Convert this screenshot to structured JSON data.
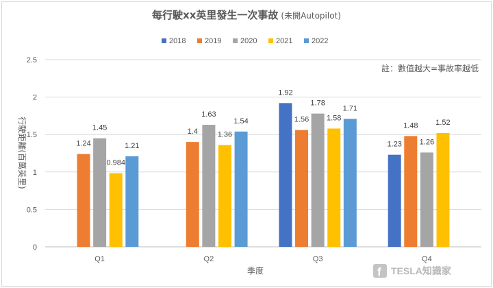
{
  "chart_data": {
    "type": "bar",
    "title": "每行駛xx英里發生一次事故",
    "subtitle": "(未開Autopilot)",
    "xlabel": "季度",
    "ylabel": "行駛距離(百萬英里)",
    "ylim": [
      0,
      2.5
    ],
    "yticks": [
      "0",
      "0.5",
      "1",
      "1.5",
      "2",
      "2.5"
    ],
    "categories": [
      "Q1",
      "Q2",
      "Q3",
      "Q4"
    ],
    "series": [
      {
        "name": "2018",
        "color": "#4472C4",
        "values": [
          null,
          null,
          1.92,
          1.23
        ],
        "labels": [
          null,
          null,
          "1.92",
          "1.23"
        ]
      },
      {
        "name": "2019",
        "color": "#ED7D31",
        "values": [
          1.24,
          1.4,
          1.56,
          1.48
        ],
        "labels": [
          "1.24",
          "1.4",
          "1.56",
          "1.48"
        ]
      },
      {
        "name": "2020",
        "color": "#A5A5A5",
        "values": [
          1.45,
          1.63,
          1.78,
          1.26
        ],
        "labels": [
          "1.45",
          "1.63",
          "1.78",
          "1.26"
        ]
      },
      {
        "name": "2021",
        "color": "#FFC000",
        "values": [
          0.984,
          1.36,
          1.58,
          1.52
        ],
        "labels": [
          "0.984",
          "1.36",
          "1.58",
          "1.52"
        ]
      },
      {
        "name": "2022",
        "color": "#5B9BD5",
        "values": [
          1.21,
          1.54,
          1.71,
          null
        ],
        "labels": [
          "1.21",
          "1.54",
          "1.71",
          null
        ]
      }
    ],
    "grid": true,
    "legend_position": "top-center",
    "annotation": "註：數值越大=事故率越低"
  },
  "watermark": {
    "text": "TESLA知識家",
    "icon": "facebook-icon"
  }
}
